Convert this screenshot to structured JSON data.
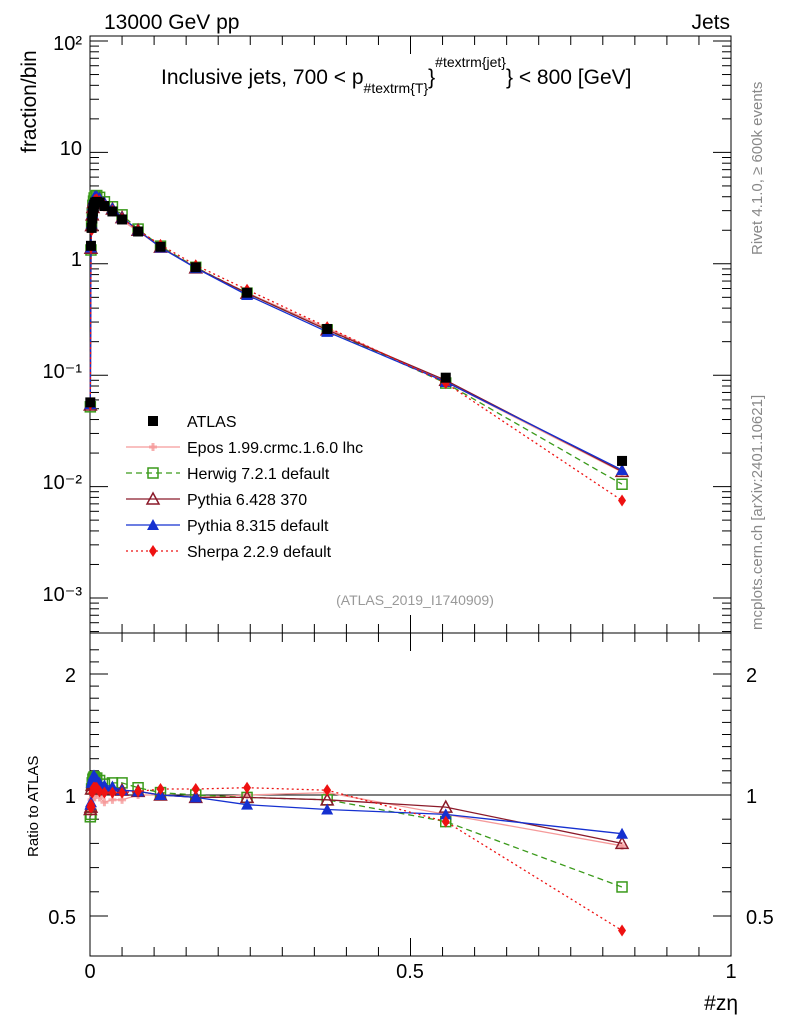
{
  "header": {
    "left_label": "13000 GeV pp",
    "right_label": "Jets"
  },
  "side_labels": {
    "rivet": "Rivet 4.1.0, ≥ 600k events",
    "mcplots": "mcplots.cern.ch [arXiv:2401.10621]"
  },
  "colors": {
    "ATLAS": "#000000",
    "Epos": "#f59a9a",
    "Herwig": "#3a9a1a",
    "Pythia6": "#8b1a2a",
    "Pythia8": "#1530d0",
    "Sherpa": "#ee1111"
  },
  "chart_data": [
    {
      "type": "line",
      "title": "Inclusive jets, 700 < p#textrm{T}#textrm{jet} < 800 [GeV]",
      "title_parts": {
        "prefix": "Inclusive jets, 700 < p",
        "sub": "#textrm{T}",
        "sup": "#textrm{jet}",
        "suffix": "} < 800 [GeV]"
      },
      "watermark": "(ATLAS_2019_I1740909)",
      "ylabel": "fraction/bin",
      "xlabel": "#zη",
      "yscale": "log",
      "ylim": [
        0.00025,
        100
      ],
      "xlim": [
        0,
        1
      ],
      "ytick_labels": [
        "10²",
        "10",
        "1",
        "10⁻¹",
        "10⁻²",
        "10⁻³"
      ],
      "legend_position": "bottom-left",
      "legend": [
        "ATLAS",
        "Epos 1.99.crmc.1.6.0 lhc",
        "Herwig 7.2.1 default",
        "Pythia 6.428 370",
        "Pythia 8.315 default",
        "Sherpa 2.2.9 default"
      ],
      "x": [
        0.0005,
        0.0015,
        0.0025,
        0.0035,
        0.0045,
        0.0055,
        0.0065,
        0.008,
        0.0105,
        0.015,
        0.0225,
        0.035,
        0.05,
        0.075,
        0.11,
        0.165,
        0.245,
        0.37,
        0.555,
        0.83
      ],
      "series": [
        {
          "name": "ATLAS",
          "values": [
            0.057,
            1.45,
            2.1,
            2.55,
            2.95,
            3.2,
            3.4,
            3.55,
            3.6,
            3.55,
            3.3,
            2.95,
            2.5,
            1.95,
            1.42,
            0.93,
            0.55,
            0.26,
            0.095,
            0.017
          ]
        },
        {
          "name": "Epos 1.99.crmc.1.6.0 lhc",
          "values": [
            0.053,
            1.35,
            2.05,
            2.5,
            2.9,
            3.25,
            3.45,
            3.6,
            3.65,
            3.5,
            3.2,
            2.9,
            2.45,
            1.95,
            1.42,
            0.92,
            0.55,
            0.265,
            0.087,
            0.0135
          ]
        },
        {
          "name": "Herwig 7.2.1 default",
          "values": [
            0.052,
            1.33,
            2.2,
            2.8,
            3.35,
            3.65,
            3.9,
            4.05,
            4.1,
            3.95,
            3.6,
            3.25,
            2.75,
            2.05,
            1.44,
            0.93,
            0.545,
            0.255,
            0.085,
            0.0105
          ]
        },
        {
          "name": "Pythia 6.428 370",
          "values": [
            0.054,
            1.38,
            2.2,
            2.75,
            3.2,
            3.55,
            3.75,
            3.9,
            3.9,
            3.8,
            3.45,
            3.1,
            2.6,
            2.0,
            1.41,
            0.92,
            0.545,
            0.255,
            0.09,
            0.0137
          ]
        },
        {
          "name": "Pythia 8.315 default",
          "values": [
            0.055,
            1.4,
            2.3,
            2.85,
            3.35,
            3.7,
            3.95,
            4.05,
            4.05,
            3.9,
            3.55,
            3.15,
            2.6,
            2.0,
            1.4,
            0.915,
            0.525,
            0.245,
            0.087,
            0.0141
          ]
        },
        {
          "name": "Sherpa 2.2.9 default",
          "values": [
            0.055,
            1.4,
            2.0,
            2.6,
            3.05,
            3.4,
            3.6,
            3.75,
            3.8,
            3.65,
            3.35,
            3.0,
            2.55,
            2.0,
            1.48,
            0.97,
            0.585,
            0.27,
            0.085,
            0.0075
          ]
        }
      ]
    },
    {
      "type": "line",
      "ylabel": "Ratio to ATLAS",
      "xlabel": "#zη",
      "ylim": [
        0.4,
        2.3
      ],
      "xlim": [
        0,
        1
      ],
      "ytick_labels": [
        "2",
        "1",
        "0.5"
      ],
      "xtick_labels": [
        "0",
        "0.5",
        "1"
      ],
      "reference_line": 1,
      "x": [
        0.0005,
        0.0015,
        0.0025,
        0.0035,
        0.0045,
        0.0055,
        0.0065,
        0.008,
        0.0105,
        0.015,
        0.0225,
        0.035,
        0.05,
        0.075,
        0.11,
        0.165,
        0.245,
        0.37,
        0.555,
        0.83
      ],
      "series": [
        {
          "name": "Epos 1.99.crmc.1.6.0 lhc",
          "values": [
            0.93,
            0.93,
            0.98,
            0.98,
            0.99,
            1.02,
            1.02,
            1.02,
            1.02,
            0.99,
            0.97,
            0.98,
            0.98,
            1.0,
            1.0,
            0.99,
            1.0,
            1.02,
            0.92,
            0.79
          ]
        },
        {
          "name": "Herwig 7.2.1 default",
          "values": [
            0.91,
            0.92,
            1.05,
            1.1,
            1.13,
            1.14,
            1.15,
            1.14,
            1.14,
            1.12,
            1.09,
            1.1,
            1.1,
            1.06,
            1.02,
            1.0,
            0.99,
            0.98,
            0.89,
            0.62
          ]
        },
        {
          "name": "Pythia 6.428 370",
          "values": [
            0.94,
            0.95,
            1.05,
            1.08,
            1.09,
            1.11,
            1.11,
            1.1,
            1.09,
            1.08,
            1.05,
            1.05,
            1.04,
            1.03,
            1.0,
            0.99,
            0.99,
            0.98,
            0.95,
            0.8
          ]
        },
        {
          "name": "Pythia 8.315 default",
          "values": [
            0.96,
            0.97,
            1.1,
            1.12,
            1.14,
            1.16,
            1.16,
            1.14,
            1.13,
            1.1,
            1.08,
            1.07,
            1.04,
            1.03,
            1.0,
            0.99,
            0.96,
            0.94,
            0.92,
            0.84
          ]
        },
        {
          "name": "Sherpa 2.2.9 default",
          "values": [
            0.95,
            0.96,
            0.95,
            1.02,
            1.03,
            1.06,
            1.06,
            1.06,
            1.06,
            1.03,
            1.02,
            1.02,
            1.02,
            1.03,
            1.05,
            1.05,
            1.06,
            1.04,
            0.89,
            0.44
          ]
        }
      ]
    }
  ]
}
